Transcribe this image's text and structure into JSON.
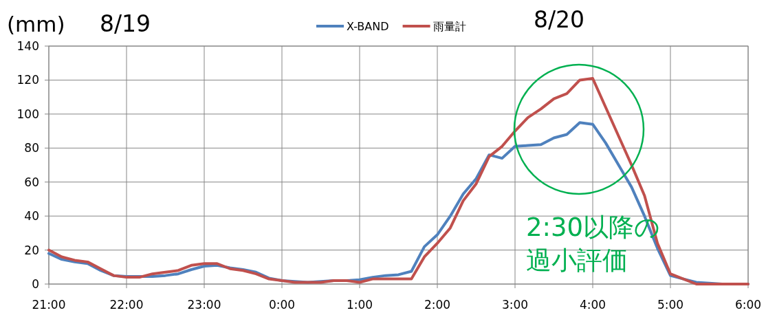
{
  "chart_data": {
    "type": "line",
    "ylabel": "(mm)",
    "annotations": [
      "8/19",
      "8/20",
      "2:30以降の",
      "過小評価"
    ],
    "categories": [
      "21:00",
      null,
      null,
      null,
      null,
      null,
      "22:00",
      null,
      null,
      null,
      null,
      null,
      "23:00",
      null,
      null,
      null,
      null,
      null,
      "0:00",
      null,
      null,
      null,
      null,
      null,
      "1:00",
      null,
      null,
      null,
      null,
      null,
      "2:00",
      null,
      null,
      null,
      null,
      null,
      "3:00",
      null,
      null,
      null,
      null,
      null,
      "4:00",
      null,
      null,
      null,
      null,
      null,
      "5:00",
      null,
      null,
      null,
      null,
      null,
      "6:00"
    ],
    "series": [
      {
        "name": "X-BAND",
        "color": "#4f81bd",
        "values": [
          18,
          14.5,
          13,
          12,
          8,
          5,
          4.5,
          4.5,
          4.5,
          5,
          6,
          8.5,
          10.5,
          11,
          9.5,
          8.5,
          7,
          3.5,
          2,
          1.5,
          1,
          1.5,
          2,
          2,
          2.5,
          4,
          5,
          5.5,
          7.5,
          22,
          29,
          40,
          53,
          62,
          76,
          74,
          81,
          81.5,
          82,
          86,
          88,
          95,
          94,
          83,
          70,
          57,
          40,
          21,
          5,
          3,
          1,
          0.5,
          0,
          0,
          0
        ]
      },
      {
        "name": "雨量計",
        "color": "#c0504d",
        "values": [
          20,
          16,
          14,
          13,
          9,
          5,
          4,
          4,
          6,
          7,
          8,
          11,
          12,
          12,
          9,
          8,
          6,
          3,
          2,
          1,
          1,
          1,
          2,
          2,
          1,
          3,
          3,
          3,
          3,
          16,
          24,
          33,
          49,
          59,
          75,
          81,
          90,
          98,
          103,
          109,
          112,
          120,
          121,
          104,
          87,
          70,
          52,
          24,
          6,
          3,
          0,
          0,
          0,
          0,
          0
        ]
      }
    ],
    "ylim": [
      0,
      140
    ],
    "yticks": [
      0,
      20,
      40,
      60,
      80,
      100,
      120,
      140
    ],
    "grid": true,
    "legend": "top",
    "marker": "none",
    "line_style": "solid"
  }
}
